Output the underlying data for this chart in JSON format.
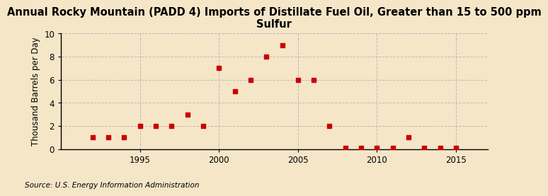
{
  "title": "Annual Rocky Mountain (PADD 4) Imports of Distillate Fuel Oil, Greater than 15 to 500 ppm\nSulfur",
  "ylabel": "Thousand Barrels per Day",
  "source": "Source: U.S. Energy Information Administration",
  "years": [
    1992,
    1993,
    1994,
    1995,
    1996,
    1997,
    1998,
    1999,
    2000,
    2001,
    2002,
    2003,
    2004,
    2005,
    2006,
    2007,
    2008,
    2009,
    2010,
    2011,
    2012,
    2013,
    2014,
    2015
  ],
  "values": [
    1,
    1,
    1,
    2,
    2,
    2,
    3,
    2,
    7,
    5,
    6,
    8,
    9,
    6,
    6,
    2,
    0.1,
    0.1,
    0.1,
    0.1,
    1,
    0.1,
    0.1,
    0.1
  ],
  "marker_color": "#cc0000",
  "marker_size": 4,
  "background_color": "#f5e6c8",
  "grid_color": "#bbbbbb",
  "ylim": [
    0,
    10
  ],
  "yticks": [
    0,
    2,
    4,
    6,
    8,
    10
  ],
  "xticks": [
    1995,
    2000,
    2005,
    2010,
    2015
  ],
  "xlim": [
    1990,
    2017
  ],
  "title_fontsize": 10.5,
  "label_fontsize": 8.5,
  "tick_fontsize": 8.5,
  "source_fontsize": 7.5
}
